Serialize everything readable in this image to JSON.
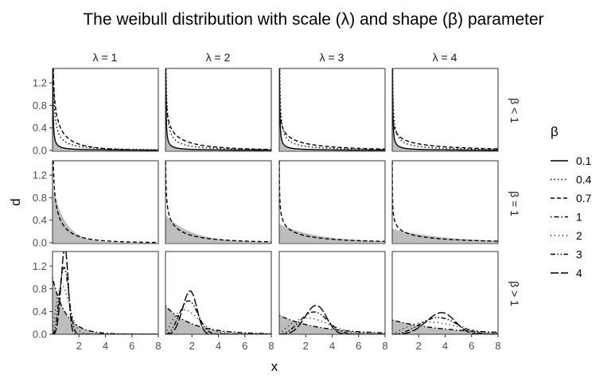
{
  "chart_data": {
    "type": "line",
    "title": "The weibull distribution with scale (λ) and shape (β) parameter",
    "xlabel": "x",
    "ylabel": "d",
    "xlim": [
      0,
      8
    ],
    "ylim": [
      0,
      1.4
    ],
    "x_ticks": [
      "2",
      "4",
      "6",
      "8"
    ],
    "y_ticks": [
      "0.0",
      "0.4",
      "0.8",
      "1.2"
    ],
    "column_labels": [
      "λ = 1",
      "λ = 2",
      "λ = 3",
      "λ = 4"
    ],
    "column_scales": [
      1,
      2,
      3,
      4
    ],
    "row_labels": [
      "β < 1",
      "β = 1",
      "β > 1"
    ],
    "legend": {
      "title": "β",
      "position": "right",
      "entries": [
        {
          "label": "0.1",
          "shape": 0.1,
          "dash": "solid"
        },
        {
          "label": "0.4",
          "shape": 0.4,
          "dash": "dotted"
        },
        {
          "label": "0.7",
          "shape": 0.7,
          "dash": "dashed"
        },
        {
          "label": "1",
          "shape": 1,
          "dash": "dotdash"
        },
        {
          "label": "2",
          "shape": 2,
          "dash": "fine-dotted"
        },
        {
          "label": "3",
          "shape": 3,
          "dash": "dash-dot-dot"
        },
        {
          "label": "4",
          "shape": 4,
          "dash": "longdash"
        }
      ]
    },
    "rows": [
      {
        "label": "β < 1",
        "shapes": [
          0.1,
          0.4,
          0.7
        ],
        "shaded_shape": 0.1
      },
      {
        "label": "β = 1",
        "shapes": [
          0.7
        ],
        "shaded_shape": 1
      },
      {
        "label": "β > 1",
        "shapes": [
          1,
          2,
          3,
          4
        ],
        "shaded_shape": 1
      }
    ],
    "colors": {
      "line": "#000000",
      "shade": "#bdbdbd",
      "panel_border": "#333333",
      "tick_text": "#4d4d4d"
    }
  }
}
